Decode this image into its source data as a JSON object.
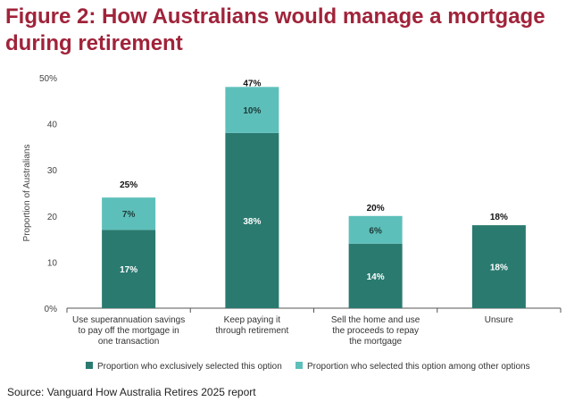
{
  "title_line1": "Figure 2: How Australians would manage a mortgage",
  "title_line2": "during retirement",
  "source": "Source: Vanguard How Australia Retires 2025 report",
  "colors": {
    "exclusive": "#2a7a70",
    "among": "#5dbfba",
    "title": "#a0233a",
    "axis_text": "#444444"
  },
  "chart_data": {
    "type": "bar",
    "stacked": true,
    "ylabel": "Proportion of Australians",
    "ylim": [
      0,
      50
    ],
    "yticks": [
      "0%",
      "10",
      "20",
      "30",
      "40",
      "50%"
    ],
    "ytick_values": [
      0,
      10,
      20,
      30,
      40,
      50
    ],
    "categories": [
      [
        "Use superannuation savings",
        "to pay off the mortgage in",
        "one transaction"
      ],
      [
        "Keep paying it",
        "through retirement"
      ],
      [
        "Sell the home and use",
        "the proceeds to repay",
        "the mortgage"
      ],
      [
        "Unsure"
      ]
    ],
    "series": [
      {
        "name": "Proportion who exclusively selected this option",
        "values": [
          17,
          38,
          14,
          18
        ],
        "labels": [
          "17%",
          "38%",
          "14%",
          "18%"
        ]
      },
      {
        "name": "Proportion who selected this option among other options",
        "values": [
          7,
          10,
          6,
          0
        ],
        "labels": [
          "7%",
          "10%",
          "6%",
          ""
        ]
      }
    ],
    "totals": [
      25,
      47,
      20,
      18
    ],
    "total_labels": [
      "25%",
      "47%",
      "20%",
      "18%"
    ],
    "legend_position": "bottom",
    "grid": false
  }
}
